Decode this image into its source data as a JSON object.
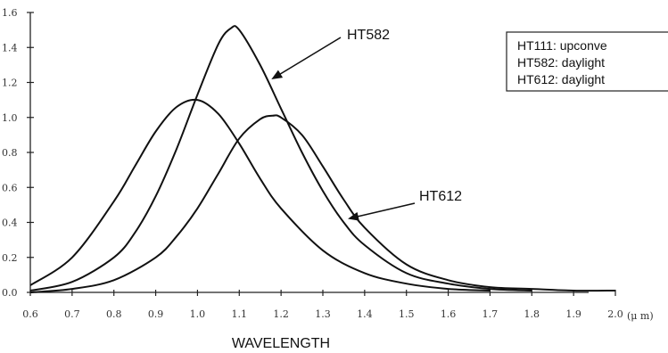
{
  "chart_data": {
    "type": "line",
    "title": "",
    "xlabel": "WAVELENGTH",
    "x_unit": "(μ m)",
    "ylabel": "",
    "xlim": [
      0.6,
      2.0
    ],
    "ylim": [
      0.0,
      1.6
    ],
    "x_ticks": [
      "0.6",
      "0.7",
      "0.8",
      "0.9",
      "1.0",
      "1.1",
      "1.2",
      "1.3",
      "1.4",
      "1.5",
      "1.6",
      "1.7",
      "1.8",
      "1.9",
      "2.0"
    ],
    "y_ticks": [
      "0.0",
      "0.2",
      "0.4",
      "0.6",
      "0.8",
      "1.0",
      "1.2",
      "1.4",
      "1.6"
    ],
    "grid": false,
    "legend_placement": "top-right",
    "legend": [
      "HT111: upconve",
      "HT582: daylight",
      "HT612: daylight"
    ],
    "annotations": [
      {
        "text": "HT582",
        "target_series": "HT582"
      },
      {
        "text": "HT612",
        "target_series": "HT612"
      }
    ],
    "series": [
      {
        "name": "HT582",
        "x": [
          0.6,
          0.7,
          0.8,
          0.85,
          0.9,
          0.95,
          1.0,
          1.05,
          1.08,
          1.1,
          1.15,
          1.2,
          1.25,
          1.3,
          1.35,
          1.4,
          1.5,
          1.6,
          1.7,
          1.8
        ],
        "y": [
          0.01,
          0.06,
          0.2,
          0.34,
          0.55,
          0.82,
          1.13,
          1.42,
          1.51,
          1.5,
          1.3,
          1.05,
          0.8,
          0.58,
          0.4,
          0.27,
          0.11,
          0.05,
          0.02,
          0.01
        ]
      },
      {
        "name": "HT111",
        "x": [
          0.6,
          0.7,
          0.8,
          0.85,
          0.9,
          0.95,
          1.0,
          1.05,
          1.1,
          1.15,
          1.2,
          1.3,
          1.4,
          1.5,
          1.6,
          1.7
        ],
        "y": [
          0.04,
          0.2,
          0.52,
          0.72,
          0.92,
          1.06,
          1.1,
          1.02,
          0.85,
          0.65,
          0.48,
          0.24,
          0.11,
          0.05,
          0.02,
          0.01
        ]
      },
      {
        "name": "HT612",
        "x": [
          0.6,
          0.7,
          0.8,
          0.9,
          0.95,
          1.0,
          1.05,
          1.1,
          1.15,
          1.18,
          1.2,
          1.25,
          1.3,
          1.35,
          1.4,
          1.5,
          1.6,
          1.7,
          1.8,
          1.9,
          2.0
        ],
        "y": [
          0.0,
          0.02,
          0.07,
          0.2,
          0.32,
          0.48,
          0.68,
          0.88,
          0.99,
          1.01,
          1.0,
          0.9,
          0.72,
          0.53,
          0.37,
          0.16,
          0.07,
          0.03,
          0.02,
          0.01,
          0.01
        ]
      }
    ]
  }
}
